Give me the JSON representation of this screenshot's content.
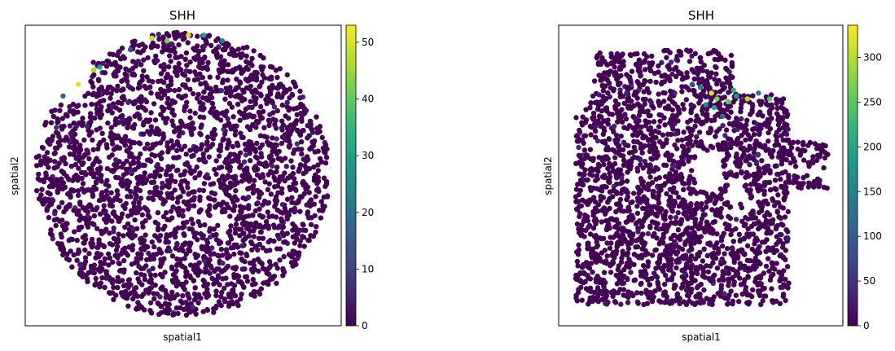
{
  "chart_data": [
    {
      "type": "scatter",
      "title": "SHH",
      "xlabel": "spatial1",
      "ylabel": "spatial2",
      "colorbar": {
        "min": 0,
        "max": 53,
        "ticks": [
          0,
          10,
          20,
          30,
          40,
          50
        ],
        "colormap": "viridis"
      },
      "grid": false,
      "point_count_estimate": 2600,
      "highlights": [
        {
          "x": 0.4,
          "y": 0.97,
          "value": 48
        },
        {
          "x": 0.52,
          "y": 0.98,
          "value": 50
        },
        {
          "x": 0.45,
          "y": 0.96,
          "value": 42
        },
        {
          "x": 0.57,
          "y": 0.98,
          "value": 30
        },
        {
          "x": 0.63,
          "y": 0.96,
          "value": 22
        },
        {
          "x": 0.21,
          "y": 0.86,
          "value": 46
        },
        {
          "x": 0.16,
          "y": 0.81,
          "value": 50
        },
        {
          "x": 0.23,
          "y": 0.87,
          "value": 30
        },
        {
          "x": 0.11,
          "y": 0.77,
          "value": 15
        },
        {
          "x": 0.33,
          "y": 0.93,
          "value": 12
        }
      ]
    },
    {
      "type": "scatter",
      "title": "SHH",
      "xlabel": "spatial1",
      "ylabel": "spatial2",
      "colorbar": {
        "min": 0,
        "max": 336,
        "ticks": [
          0,
          50,
          100,
          150,
          200,
          250,
          300
        ],
        "colormap": "viridis"
      },
      "grid": false,
      "point_count_estimate": 2400,
      "highlights": [
        {
          "x": 0.54,
          "y": 0.78,
          "value": 320
        },
        {
          "x": 0.6,
          "y": 0.75,
          "value": 250
        },
        {
          "x": 0.55,
          "y": 0.73,
          "value": 200
        },
        {
          "x": 0.63,
          "y": 0.77,
          "value": 180
        },
        {
          "x": 0.67,
          "y": 0.76,
          "value": 300
        },
        {
          "x": 0.75,
          "y": 0.76,
          "value": 240
        },
        {
          "x": 0.5,
          "y": 0.8,
          "value": 140
        },
        {
          "x": 0.52,
          "y": 0.74,
          "value": 160
        },
        {
          "x": 0.58,
          "y": 0.7,
          "value": 120
        },
        {
          "x": 0.71,
          "y": 0.78,
          "value": 130
        },
        {
          "x": 0.47,
          "y": 0.81,
          "value": 90
        },
        {
          "x": 0.62,
          "y": 0.79,
          "value": 220
        },
        {
          "x": 0.56,
          "y": 0.76,
          "value": 270
        }
      ]
    }
  ]
}
